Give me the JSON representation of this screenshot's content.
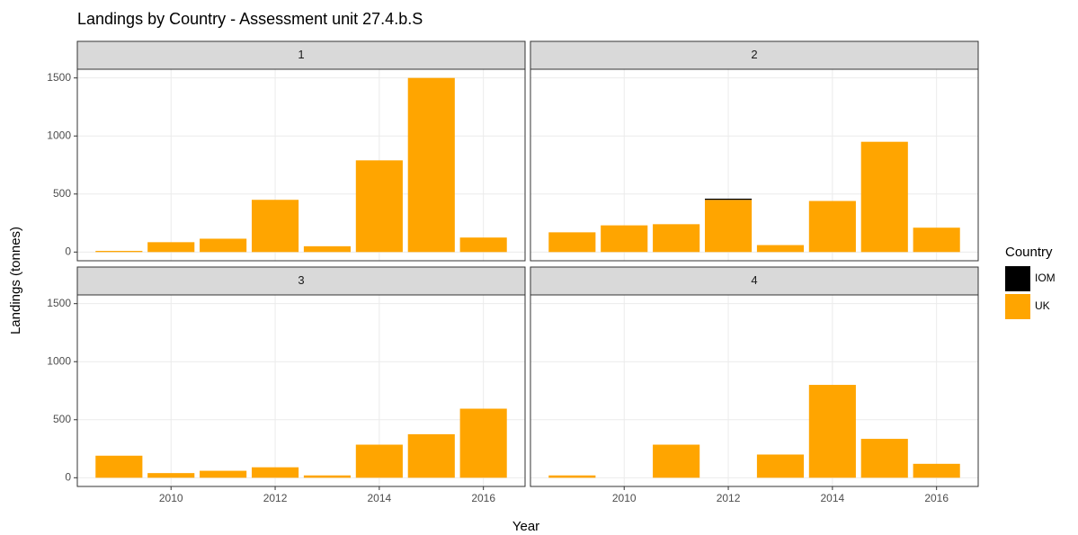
{
  "figure": {
    "title": "Landings by Country - Assessment unit 27.4.b.S",
    "xlabel": "Year",
    "ylabel": "Landings (tonnes)",
    "legend_title": "Country"
  },
  "chart_data": [
    {
      "type": "bar",
      "stacked": true,
      "title": "1",
      "x": [
        2009,
        2010,
        2011,
        2012,
        2013,
        2014,
        2015,
        2016
      ],
      "series": [
        {
          "name": "IOM",
          "color": "#000000",
          "values": [
            null,
            null,
            null,
            null,
            null,
            null,
            null,
            null
          ]
        },
        {
          "name": "UK",
          "color": "#FFA500",
          "values": [
            10,
            85,
            115,
            450,
            50,
            790,
            1500,
            125
          ]
        }
      ],
      "xlim": [
        2008.2,
        2016.8
      ],
      "xticks": [
        2010,
        2012,
        2014,
        2016
      ],
      "ylim": [
        -75,
        1575
      ],
      "yticks": [
        0,
        500,
        1000,
        1500
      ],
      "grid": true
    },
    {
      "type": "bar",
      "stacked": true,
      "title": "2",
      "x": [
        2009,
        2010,
        2011,
        2012,
        2013,
        2014,
        2015,
        2016
      ],
      "series": [
        {
          "name": "IOM",
          "color": "#000000",
          "values": [
            null,
            null,
            null,
            10,
            null,
            null,
            null,
            null
          ]
        },
        {
          "name": "UK",
          "color": "#FFA500",
          "values": [
            170,
            230,
            240,
            450,
            60,
            440,
            950,
            210
          ]
        }
      ],
      "xlim": [
        2008.2,
        2016.8
      ],
      "xticks": [
        2010,
        2012,
        2014,
        2016
      ],
      "ylim": [
        -75,
        1575
      ],
      "yticks": [
        0,
        500,
        1000,
        1500
      ],
      "grid": true
    },
    {
      "type": "bar",
      "stacked": true,
      "title": "3",
      "x": [
        2009,
        2010,
        2011,
        2012,
        2013,
        2014,
        2015,
        2016
      ],
      "series": [
        {
          "name": "IOM",
          "color": "#000000",
          "values": [
            null,
            null,
            null,
            null,
            null,
            null,
            null,
            null
          ]
        },
        {
          "name": "UK",
          "color": "#FFA500",
          "values": [
            190,
            40,
            60,
            90,
            20,
            285,
            375,
            595
          ]
        }
      ],
      "xlim": [
        2008.2,
        2016.8
      ],
      "xticks": [
        2010,
        2012,
        2014,
        2016
      ],
      "ylim": [
        -75,
        1575
      ],
      "yticks": [
        0,
        500,
        1000,
        1500
      ],
      "grid": true
    },
    {
      "type": "bar",
      "stacked": true,
      "title": "4",
      "x": [
        2009,
        2010,
        2011,
        2012,
        2013,
        2014,
        2015,
        2016
      ],
      "series": [
        {
          "name": "IOM",
          "color": "#000000",
          "values": [
            null,
            null,
            null,
            null,
            null,
            null,
            null,
            null
          ]
        },
        {
          "name": "UK",
          "color": "#FFA500",
          "values": [
            20,
            null,
            285,
            null,
            200,
            800,
            335,
            120
          ]
        }
      ],
      "xlim": [
        2008.2,
        2016.8
      ],
      "xticks": [
        2010,
        2012,
        2014,
        2016
      ],
      "ylim": [
        -75,
        1575
      ],
      "yticks": [
        0,
        500,
        1000,
        1500
      ],
      "grid": true
    }
  ]
}
